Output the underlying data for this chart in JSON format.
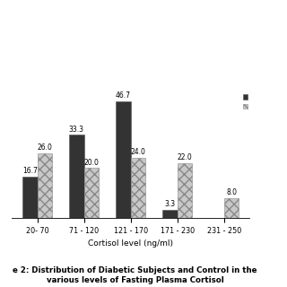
{
  "categories": [
    "20- 70",
    "71 - 120",
    "121 - 170",
    "171 - 230",
    "231 - 250"
  ],
  "diabetic": [
    16.7,
    33.3,
    46.7,
    3.3,
    0.0
  ],
  "control": [
    26.0,
    20.0,
    24.0,
    22.0,
    8.0
  ],
  "diabetic_color": "#333333",
  "control_color": "#c8c8c8",
  "control_hatch": "xxx",
  "xlabel": "Cortisol level (ng/ml)",
  "title_line1": "e 2: Distribution of Diabetic Subjects and Control in the",
  "title_line2": "various levels of Fasting Plasma Cortisol",
  "ylim": [
    0,
    55
  ],
  "bar_width": 0.32,
  "title_fontsize": 6.2,
  "axis_fontsize": 6.5,
  "tick_fontsize": 5.8,
  "value_fontsize": 5.5
}
